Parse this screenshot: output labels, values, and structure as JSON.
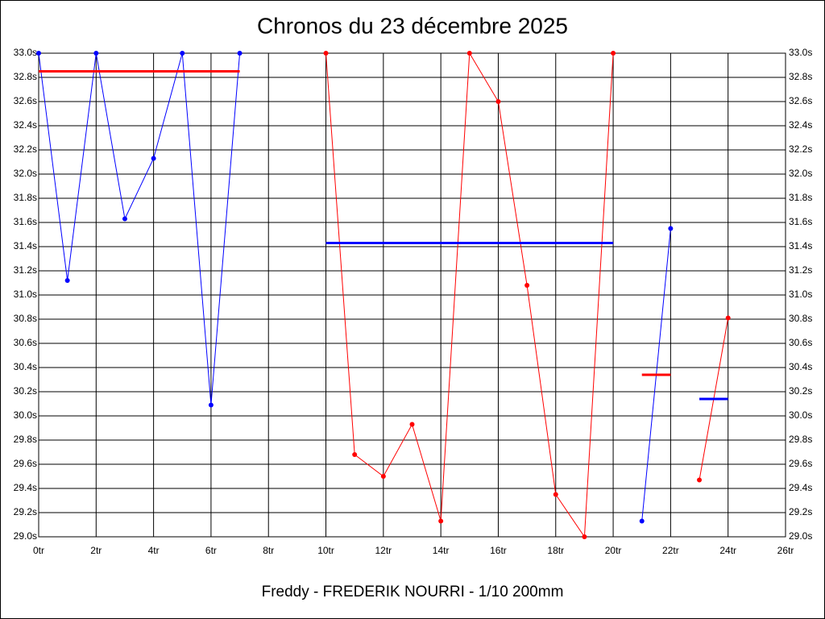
{
  "chart_data": {
    "type": "line",
    "title": "Chronos du 23 décembre 2025",
    "x_label": "Freddy - FREDERIK NOURRI - 1/10 200mm",
    "x": [
      0,
      1,
      2,
      3,
      4,
      5,
      6,
      7,
      8,
      9,
      10,
      11,
      12,
      13,
      14,
      15,
      16,
      17,
      18,
      19,
      20,
      21,
      22,
      23,
      24
    ],
    "series": [
      {
        "color": "#0000ff",
        "values": [
          33.0,
          31.12,
          33.0,
          31.63,
          32.13,
          33.0,
          30.09,
          33.0,
          null,
          null,
          null,
          null,
          null,
          null,
          null,
          null,
          null,
          null,
          null,
          null,
          null,
          29.13,
          31.55,
          null,
          null
        ]
      },
      {
        "color": "#ff0000",
        "values": [
          null,
          null,
          null,
          null,
          null,
          null,
          null,
          null,
          null,
          null,
          33.0,
          29.68,
          29.5,
          29.93,
          29.13,
          33.0,
          32.6,
          31.08,
          29.35,
          29.0,
          33.0,
          null,
          null,
          29.47,
          30.81
        ]
      }
    ],
    "reference_lines": [
      {
        "color": "#ff0000",
        "x": [
          0,
          7
        ],
        "value": 32.85
      },
      {
        "color": "#0000ff",
        "x": [
          10,
          20
        ],
        "value": 31.43
      },
      {
        "color": "#ff0000",
        "x": [
          21,
          22
        ],
        "value": 30.34
      },
      {
        "color": "#0000ff",
        "x": [
          23,
          24
        ],
        "value": 30.14
      }
    ],
    "xlim": [
      0,
      26
    ],
    "xticks": [
      {
        "value": 0,
        "label": "0tr"
      },
      {
        "value": 2,
        "label": "2tr"
      },
      {
        "value": 4,
        "label": "4tr"
      },
      {
        "value": 6,
        "label": "6tr"
      },
      {
        "value": 8,
        "label": "8tr"
      },
      {
        "value": 10,
        "label": "10tr"
      },
      {
        "value": 12,
        "label": "12tr"
      },
      {
        "value": 14,
        "label": "14tr"
      },
      {
        "value": 16,
        "label": "16tr"
      },
      {
        "value": 18,
        "label": "18tr"
      },
      {
        "value": 20,
        "label": "20tr"
      },
      {
        "value": 22,
        "label": "22tr"
      },
      {
        "value": 24,
        "label": "24tr"
      },
      {
        "value": 26,
        "label": "26tr"
      }
    ],
    "ylim": [
      29.0,
      33.0
    ],
    "yticks": [
      {
        "value": 29.0,
        "label": "29.0s"
      },
      {
        "value": 29.2,
        "label": "29.2s"
      },
      {
        "value": 29.4,
        "label": "29.4s"
      },
      {
        "value": 29.6,
        "label": "29.6s"
      },
      {
        "value": 29.8,
        "label": "29.8s"
      },
      {
        "value": 30.0,
        "label": "30.0s"
      },
      {
        "value": 30.2,
        "label": "30.2s"
      },
      {
        "value": 30.4,
        "label": "30.4s"
      },
      {
        "value": 30.6,
        "label": "30.6s"
      },
      {
        "value": 30.8,
        "label": "30.8s"
      },
      {
        "value": 31.0,
        "label": "31.0s"
      },
      {
        "value": 31.2,
        "label": "31.2s"
      },
      {
        "value": 31.4,
        "label": "31.4s"
      },
      {
        "value": 31.6,
        "label": "31.6s"
      },
      {
        "value": 31.8,
        "label": "31.8s"
      },
      {
        "value": 32.0,
        "label": "32.0s"
      },
      {
        "value": 32.2,
        "label": "32.2s"
      },
      {
        "value": 32.4,
        "label": "32.4s"
      },
      {
        "value": 32.6,
        "label": "32.6s"
      },
      {
        "value": 32.8,
        "label": "32.8s"
      },
      {
        "value": 33.0,
        "label": "33.0s"
      }
    ],
    "grid": true
  }
}
